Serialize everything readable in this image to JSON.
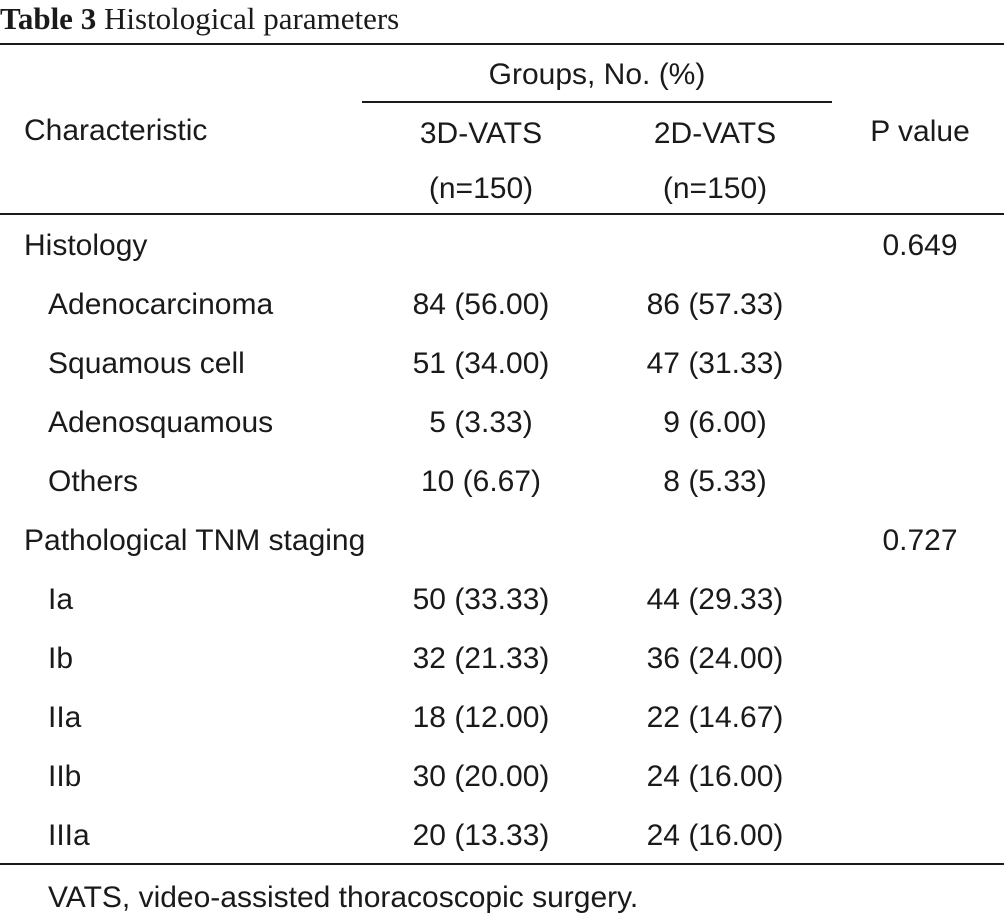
{
  "caption": {
    "label": "Table 3",
    "title": "Histological parameters"
  },
  "header": {
    "characteristic": "Characteristic",
    "groups": "Groups, No. (%)",
    "col_3d": "3D-VATS",
    "col_3d_n": "(n=150)",
    "col_2d": "2D-VATS",
    "col_2d_n": "(n=150)",
    "p_value": "P value"
  },
  "sections": [
    {
      "title": "Histology",
      "p": "0.649",
      "rows": [
        {
          "label": "Adenocarcinoma",
          "v3d": "84 (56.00)",
          "v2d": "86 (57.33)"
        },
        {
          "label": "Squamous cell",
          "v3d": "51 (34.00)",
          "v2d": "47 (31.33)"
        },
        {
          "label": "Adenosquamous",
          "v3d": "5 (3.33)",
          "v2d": "9 (6.00)"
        },
        {
          "label": "Others",
          "v3d": "10 (6.67)",
          "v2d": "8 (5.33)"
        }
      ]
    },
    {
      "title": "Pathological TNM staging",
      "p": "0.727",
      "rows": [
        {
          "label": "Ia",
          "v3d": "50 (33.33)",
          "v2d": "44 (29.33)"
        },
        {
          "label": "Ib",
          "v3d": "32 (21.33)",
          "v2d": "36 (24.00)"
        },
        {
          "label": "IIa",
          "v3d": "18 (12.00)",
          "v2d": "22 (14.67)"
        },
        {
          "label": "IIb",
          "v3d": "30 (20.00)",
          "v2d": "24 (16.00)"
        },
        {
          "label": "IIIa",
          "v3d": "20 (13.33)",
          "v2d": "24 (16.00)"
        }
      ]
    }
  ],
  "footnote": "VATS, video-assisted thoracoscopic surgery."
}
